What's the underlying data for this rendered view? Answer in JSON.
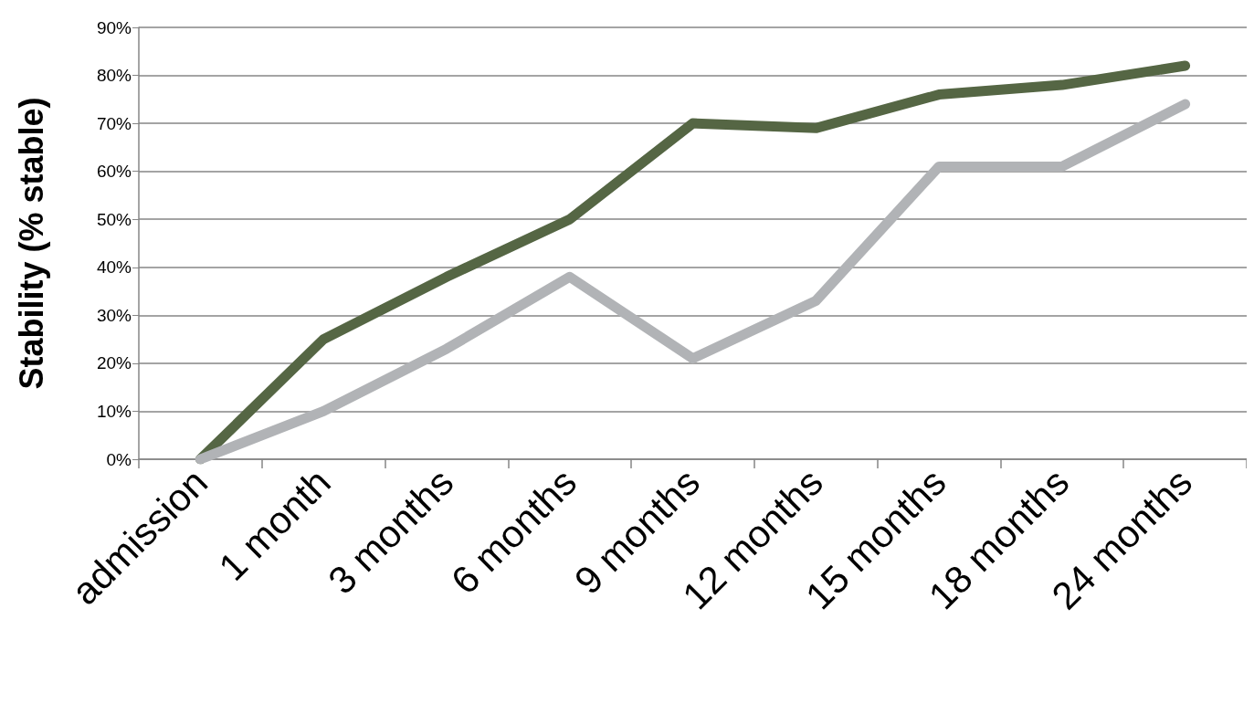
{
  "chart_data": {
    "type": "line",
    "ylabel": "Stability (% stable)",
    "categories": [
      "admission",
      "1 month",
      "3 months",
      "6 months",
      "9 months",
      "12 months",
      "15 months",
      "18 months",
      "24 months"
    ],
    "series": [
      {
        "color": "#556644",
        "values": [
          0,
          25,
          38,
          50,
          70,
          69,
          76,
          78,
          82
        ]
      },
      {
        "color": "#b1b3b6",
        "values": [
          0,
          10,
          23,
          38,
          21,
          33,
          61,
          61,
          74
        ]
      }
    ],
    "ylim": [
      0,
      90
    ],
    "yticks": [
      {
        "value": 0,
        "label": "0%"
      },
      {
        "value": 10,
        "label": "10%"
      },
      {
        "value": 20,
        "label": "20%"
      },
      {
        "value": 30,
        "label": "30%"
      },
      {
        "value": 40,
        "label": "40%"
      },
      {
        "value": 50,
        "label": "50%"
      },
      {
        "value": 60,
        "label": "60%"
      },
      {
        "value": 70,
        "label": "70%"
      },
      {
        "value": 80,
        "label": "80%"
      },
      {
        "value": 90,
        "label": "90%"
      }
    ],
    "grid": "y",
    "marker": "none",
    "line_style": "solid"
  }
}
